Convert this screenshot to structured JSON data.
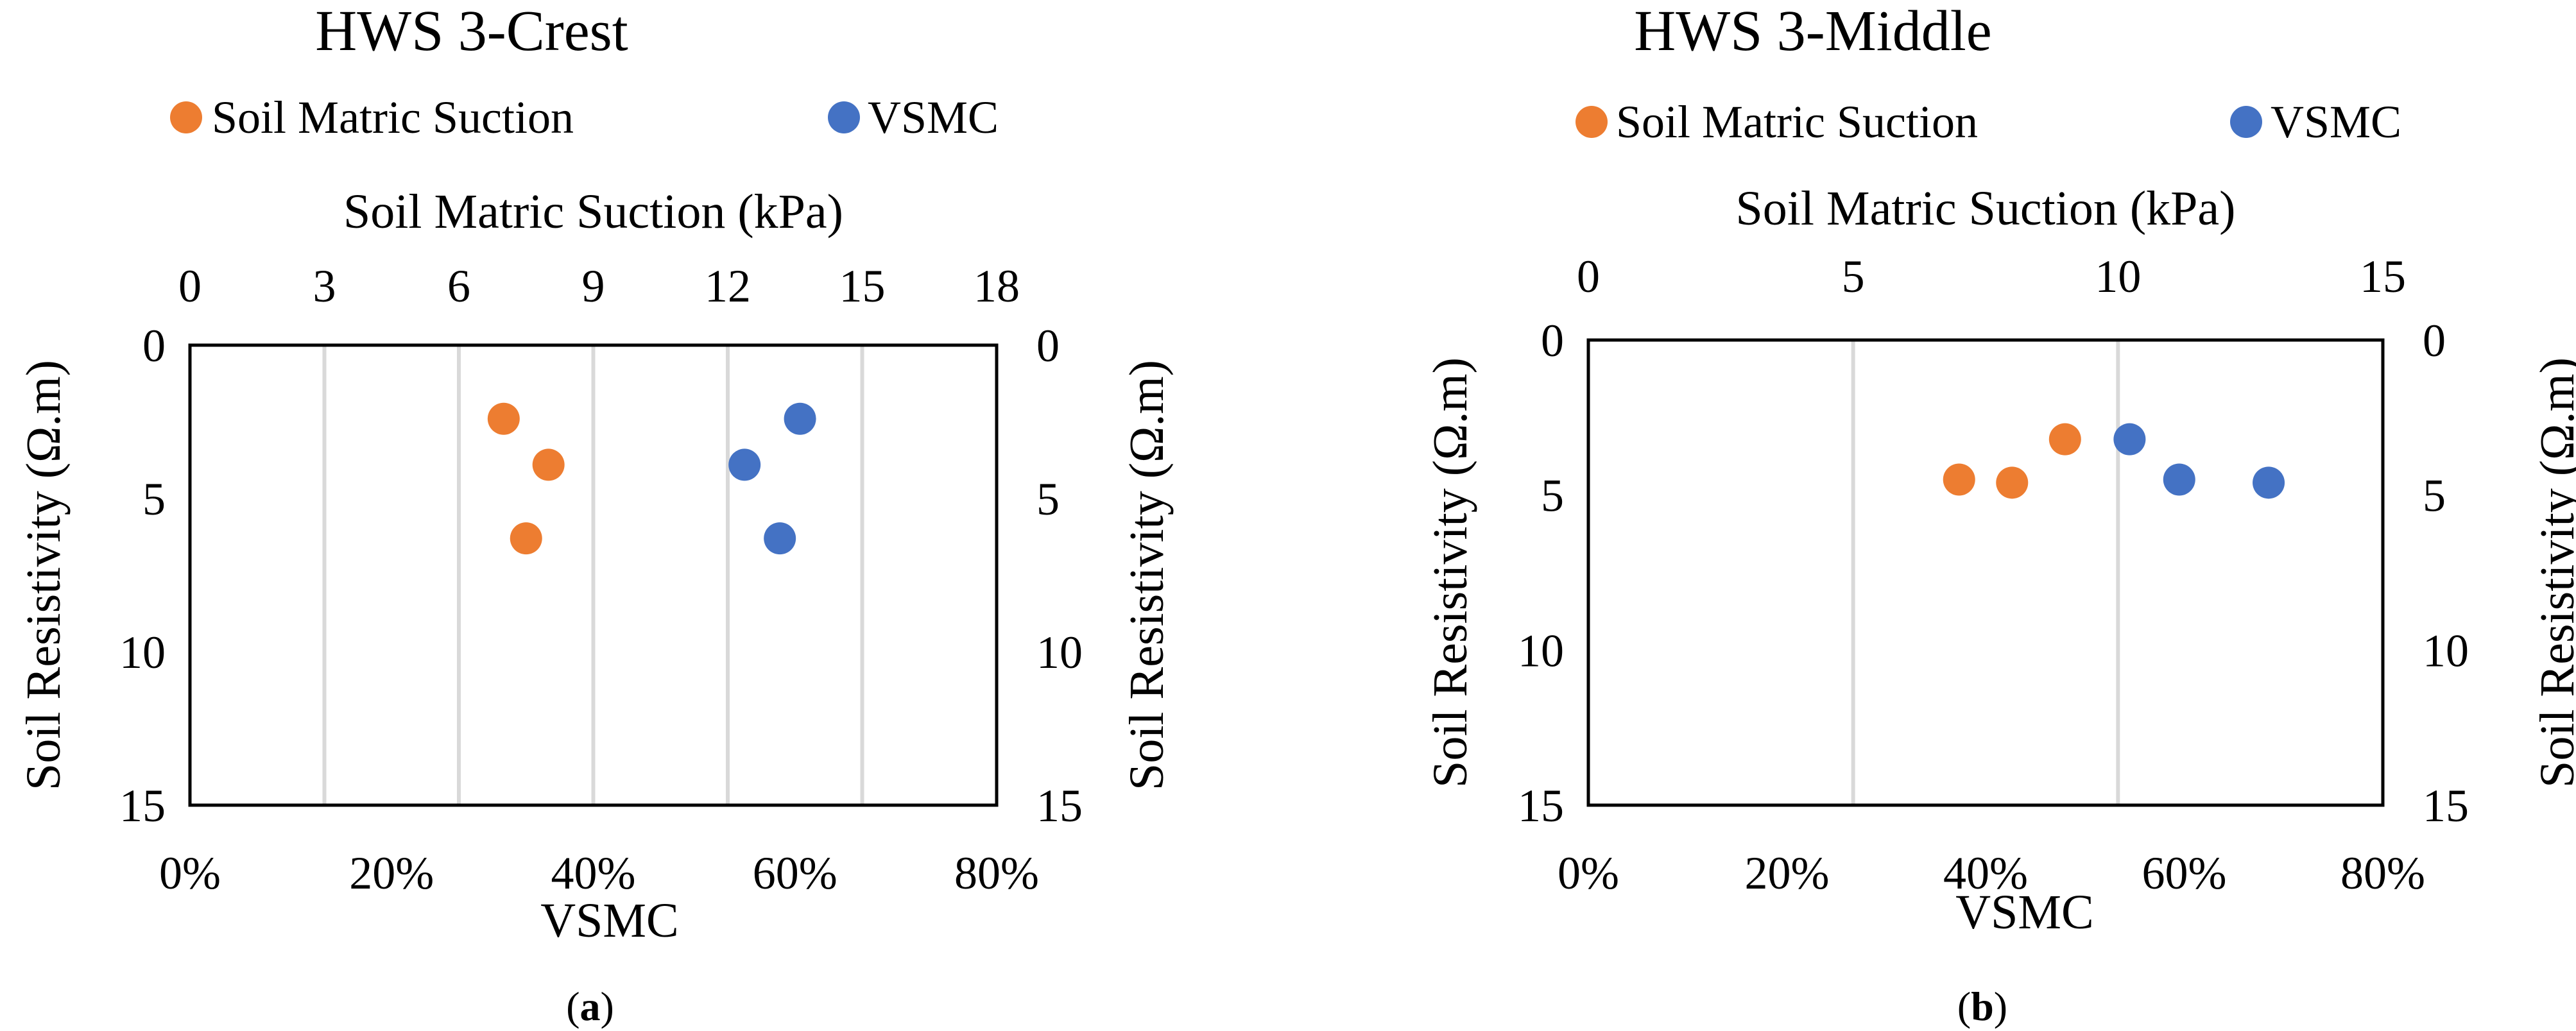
{
  "colors": {
    "suction": "#ED7D31",
    "vsmc": "#4472C4",
    "gridline": "#D9D9D9",
    "frame": "#000000"
  },
  "chart_data": [
    {
      "type": "scatter",
      "panel": "a",
      "title": "HWS 3-Crest",
      "caption": {
        "pre": "(",
        "letter": "a",
        "post": ")"
      },
      "legend": [
        "Soil Matric Suction",
        "VSMC"
      ],
      "legend_position": "top",
      "x_bottom": {
        "label": "VSMC",
        "range": [
          0,
          0.8
        ],
        "ticks": [
          0,
          0.2,
          0.4,
          0.6,
          0.8
        ],
        "tick_labels": [
          "0%",
          "20%",
          "40%",
          "60%",
          "80%"
        ]
      },
      "x_top": {
        "label": "Soil Matric Suction (kPa)",
        "range": [
          0,
          18
        ],
        "ticks": [
          0,
          3,
          6,
          9,
          12,
          15,
          18
        ],
        "tick_labels": [
          "0",
          "3",
          "6",
          "9",
          "12",
          "15",
          "18"
        ]
      },
      "y_left": {
        "label": "Soil Resistivity (Ω.m)",
        "range": [
          0,
          15
        ],
        "reversed": true,
        "ticks": [
          0,
          5,
          10,
          15
        ],
        "tick_labels": [
          "0",
          "5",
          "10",
          "15"
        ]
      },
      "y_right": {
        "label": "Soil Resistivity (Ω.m)",
        "range": [
          0,
          15
        ],
        "reversed": true,
        "ticks": [
          0,
          5,
          10,
          15
        ],
        "tick_labels": [
          "0",
          "5",
          "10",
          "15"
        ]
      },
      "gridlines": "vertical",
      "series": [
        {
          "name": "Soil Matric Suction",
          "axis": "top",
          "x": [
            7.0,
            8.0,
            7.5
          ],
          "y": [
            2.4,
            3.9,
            6.3
          ]
        },
        {
          "name": "VSMC",
          "axis": "bottom",
          "x": [
            0.605,
            0.55,
            0.585
          ],
          "y": [
            2.4,
            3.9,
            6.3
          ]
        }
      ]
    },
    {
      "type": "scatter",
      "panel": "b",
      "title": "HWS 3-Middle",
      "caption": {
        "pre": "(",
        "letter": "b",
        "post": ")"
      },
      "legend": [
        "Soil Matric Suction",
        "VSMC"
      ],
      "legend_position": "top",
      "x_bottom": {
        "label": "VSMC",
        "range": [
          0,
          0.8
        ],
        "ticks": [
          0,
          0.2,
          0.4,
          0.6,
          0.8
        ],
        "tick_labels": [
          "0%",
          "20%",
          "40%",
          "60%",
          "80%"
        ]
      },
      "x_top": {
        "label": "Soil Matric Suction (kPa)",
        "range": [
          0,
          15
        ],
        "ticks": [
          0,
          5,
          10,
          15
        ],
        "tick_labels": [
          "0",
          "5",
          "10",
          "15"
        ]
      },
      "y_left": {
        "label": "Soil Resistivity (Ω.m)",
        "range": [
          0,
          15
        ],
        "reversed": true,
        "ticks": [
          0,
          5,
          10,
          15
        ],
        "tick_labels": [
          "0",
          "5",
          "10",
          "15"
        ]
      },
      "y_right": {
        "label": "Soil Resistivity (Ω.m)",
        "range": [
          0,
          15
        ],
        "reversed": true,
        "ticks": [
          0,
          5,
          10,
          15
        ],
        "tick_labels": [
          "0",
          "5",
          "10",
          "15"
        ]
      },
      "gridlines": "vertical",
      "series": [
        {
          "name": "Soil Matric Suction",
          "axis": "top",
          "x": [
            7.0,
            8.0,
            9.0
          ],
          "y": [
            4.5,
            4.6,
            3.2
          ]
        },
        {
          "name": "VSMC",
          "axis": "bottom",
          "x": [
            0.545,
            0.595,
            0.685
          ],
          "y": [
            3.2,
            4.5,
            4.6
          ]
        }
      ]
    }
  ]
}
